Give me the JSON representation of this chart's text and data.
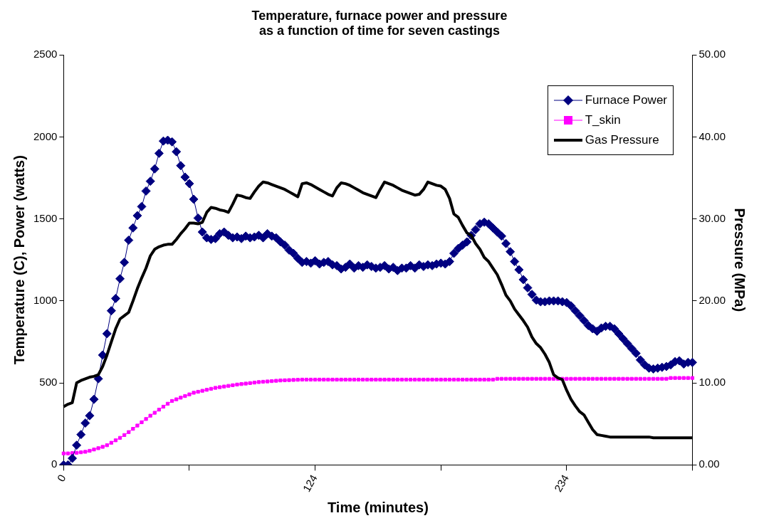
{
  "chart_data": {
    "type": "line",
    "title": "Temperature, furnace power and pressure\nas a function of time for seven castings",
    "xlabel": "Time (minutes)",
    "ylabel": "Temperature (C), Power (watts)",
    "y2label": "Pressure (MPa)",
    "categories": [
      "0",
      null,
      null,
      null,
      null,
      null,
      null,
      null,
      null,
      null,
      null,
      null,
      null,
      null,
      null,
      null,
      null,
      null,
      null,
      null,
      null,
      null,
      null,
      null,
      null,
      null,
      null,
      null,
      null,
      null,
      null,
      null,
      null,
      null,
      null,
      null,
      null,
      null,
      null,
      null,
      null,
      null,
      null,
      null,
      null,
      null,
      null,
      null,
      null,
      null,
      null,
      null,
      null,
      null,
      null,
      null,
      null,
      null,
      "124",
      null,
      null,
      null,
      null,
      null,
      null,
      null,
      null,
      null,
      null,
      null,
      null,
      null,
      null,
      null,
      null,
      null,
      null,
      null,
      null,
      null,
      null,
      null,
      null,
      null,
      null,
      null,
      null,
      null,
      null,
      null,
      null,
      null,
      null,
      null,
      null,
      null,
      null,
      null,
      null,
      null,
      null,
      null,
      null,
      null,
      null,
      null,
      null,
      null,
      null,
      null,
      null,
      null,
      null,
      null,
      null,
      null,
      "234",
      null,
      null,
      null,
      null,
      null,
      null,
      null,
      null,
      null,
      null,
      null,
      null,
      null,
      null,
      null,
      null,
      null,
      null,
      null,
      null,
      null,
      null,
      null,
      null,
      null,
      null,
      null,
      null,
      null
    ],
    "series": [
      {
        "name": "Furnace Power",
        "color": "#000080",
        "marker": "diamond",
        "values": [
          0,
          0,
          40,
          120,
          185,
          255,
          300,
          400,
          525,
          670,
          800,
          940,
          1015,
          1135,
          1235,
          1370,
          1445,
          1520,
          1575,
          1670,
          1730,
          1805,
          1900,
          1975,
          1980,
          1970,
          1910,
          1825,
          1755,
          1715,
          1620,
          1505,
          1420,
          1385,
          1375,
          1380,
          1410,
          1420,
          1400,
          1385,
          1390,
          1380,
          1395,
          1385,
          1390,
          1400,
          1385,
          1410,
          1395,
          1385,
          1360,
          1340,
          1310,
          1290,
          1260,
          1235,
          1240,
          1230,
          1245,
          1225,
          1235,
          1240,
          1220,
          1215,
          1195,
          1205,
          1225,
          1200,
          1215,
          1205,
          1220,
          1210,
          1200,
          1205,
          1215,
          1195,
          1205,
          1185,
          1200,
          1200,
          1215,
          1200,
          1220,
          1210,
          1220,
          1215,
          1225,
          1230,
          1225,
          1240,
          1290,
          1320,
          1340,
          1360,
          1400,
          1435,
          1470,
          1480,
          1470,
          1445,
          1420,
          1395,
          1350,
          1300,
          1240,
          1190,
          1130,
          1080,
          1040,
          1005,
          995,
          995,
          1000,
          1000,
          1000,
          995,
          990,
          970,
          940,
          910,
          880,
          850,
          830,
          815,
          835,
          845,
          845,
          830,
          800,
          770,
          740,
          710,
          680,
          640,
          610,
          590,
          585,
          590,
          595,
          600,
          610,
          630,
          635,
          615,
          625,
          625
        ]
      },
      {
        "name": "T_skin",
        "color": "#ff00ff",
        "marker": "square",
        "values": [
          70,
          70,
          72,
          74,
          77,
          80,
          86,
          94,
          102,
          110,
          120,
          135,
          150,
          165,
          182,
          200,
          220,
          240,
          260,
          280,
          300,
          318,
          337,
          355,
          373,
          390,
          400,
          410,
          420,
          430,
          440,
          446,
          452,
          458,
          464,
          470,
          474,
          478,
          482,
          486,
          490,
          493,
          496,
          499,
          502,
          505,
          507,
          509,
          511,
          513,
          515,
          516,
          517,
          518,
          519,
          520,
          520,
          520,
          520,
          520,
          520,
          520,
          520,
          520,
          520,
          520,
          520,
          520,
          520,
          520,
          520,
          520,
          520,
          520,
          520,
          520,
          520,
          520,
          520,
          520,
          520,
          520,
          520,
          520,
          520,
          520,
          520,
          520,
          520,
          520,
          520,
          520,
          520,
          520,
          520,
          520,
          520,
          520,
          520,
          520,
          525,
          525,
          525,
          525,
          525,
          525,
          525,
          525,
          525,
          525,
          525,
          525,
          525,
          525,
          525,
          525,
          525,
          525,
          525,
          525,
          525,
          525,
          525,
          525,
          525,
          525,
          525,
          525,
          525,
          525,
          525,
          525,
          525,
          525,
          525,
          525,
          525,
          525,
          525,
          525,
          530,
          530,
          530,
          530,
          530,
          530
        ]
      },
      {
        "name": "Gas Pressure",
        "color": "#000000",
        "marker": "none",
        "axis": "y2",
        "values": [
          7.1,
          7.4,
          7.6,
          10.0,
          10.3,
          10.5,
          10.7,
          10.8,
          11.0,
          12.0,
          13.4,
          15.0,
          16.6,
          17.8,
          18.2,
          18.6,
          20.0,
          21.5,
          22.8,
          24.0,
          25.5,
          26.3,
          26.6,
          26.8,
          26.9,
          26.9,
          27.5,
          28.2,
          28.8,
          29.5,
          29.5,
          29.4,
          29.6,
          30.8,
          31.4,
          31.3,
          31.1,
          31.0,
          30.8,
          31.8,
          32.9,
          32.8,
          32.6,
          32.5,
          33.3,
          34.0,
          34.5,
          34.4,
          34.2,
          34.0,
          33.8,
          33.6,
          33.3,
          33.0,
          32.7,
          34.3,
          34.4,
          34.2,
          33.9,
          33.6,
          33.3,
          33.0,
          32.8,
          33.8,
          34.4,
          34.3,
          34.1,
          33.8,
          33.5,
          33.2,
          33.0,
          32.8,
          32.6,
          33.6,
          34.5,
          34.3,
          34.1,
          33.8,
          33.5,
          33.3,
          33.1,
          32.9,
          33.0,
          33.6,
          34.5,
          34.3,
          34.1,
          34.0,
          33.6,
          32.5,
          30.6,
          30.2,
          29.2,
          28.3,
          28.0,
          27.0,
          26.3,
          25.3,
          24.8,
          24.0,
          23.2,
          22.0,
          20.7,
          20.0,
          19.0,
          18.3,
          17.6,
          16.8,
          15.6,
          14.8,
          14.3,
          13.5,
          12.5,
          11.0,
          10.6,
          10.4,
          9.1,
          8.0,
          7.2,
          6.5,
          6.1,
          5.2,
          4.3,
          3.7,
          3.6,
          3.5,
          3.4,
          3.4,
          3.4,
          3.4,
          3.4,
          3.4,
          3.4,
          3.4,
          3.4,
          3.4,
          3.3,
          3.3,
          3.3,
          3.3,
          3.3,
          3.3,
          3.3,
          3.3,
          3.3,
          3.3
        ]
      }
    ],
    "ylim": [
      0,
      2500
    ],
    "yticks": [
      0,
      500,
      1000,
      1500,
      2000,
      2500
    ],
    "y2lim": [
      0,
      50
    ],
    "y2ticks": [
      {
        "value": 0,
        "label": "0.00"
      },
      {
        "value": 10,
        "label": "10.00"
      },
      {
        "value": 20,
        "label": "20.00"
      },
      {
        "value": 30,
        "label": "30.00"
      },
      {
        "value": 40,
        "label": "40.00"
      },
      {
        "value": 50,
        "label": "50.00"
      }
    ],
    "grid": false,
    "legend": "top right",
    "line_style": "solid"
  }
}
